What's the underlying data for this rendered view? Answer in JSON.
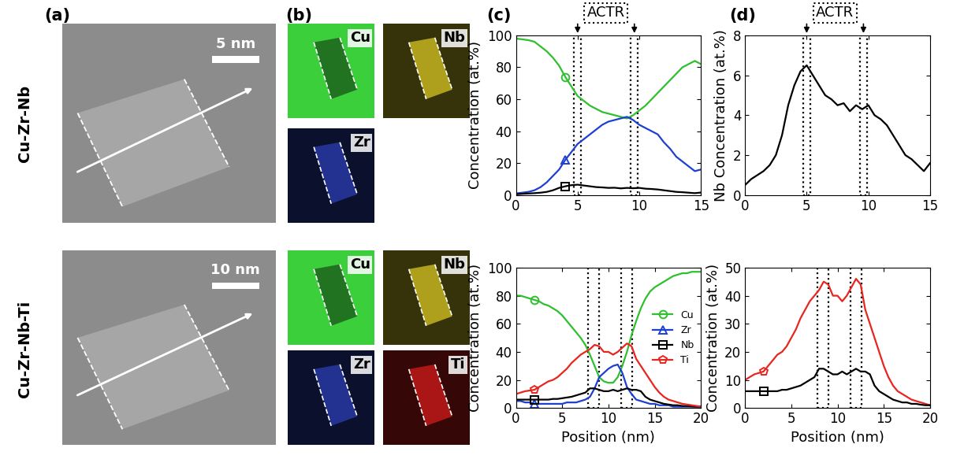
{
  "panel_labels": [
    "(a)",
    "(b)",
    "(c)",
    "(d)"
  ],
  "rows": [
    {
      "label": "Cu-Zr-Nb",
      "image": {
        "scale_bar": "5 nm"
      },
      "maps": [
        {
          "label": "Cu",
          "color": "#3ccf3c"
        },
        {
          "label": "Nb",
          "color": "#d9c823"
        },
        {
          "label": "Zr",
          "color": "#2c3fb5"
        }
      ]
    },
    {
      "label": "Cu-Zr-Nb-Ti",
      "image": {
        "scale_bar": "10 nm"
      },
      "maps": [
        {
          "label": "Cu",
          "color": "#3ccf3c"
        },
        {
          "label": "Nb",
          "color": "#d9c823"
        },
        {
          "label": "Zr",
          "color": "#2c3fb5"
        },
        {
          "label": "Ti",
          "color": "#d41c1c"
        }
      ]
    }
  ],
  "chart_data": [
    {
      "type": "line",
      "x": [
        0,
        0.5,
        1,
        1.5,
        2,
        2.5,
        3,
        3.5,
        4,
        4.5,
        5,
        5.5,
        6,
        6.5,
        7,
        7.5,
        8,
        8.5,
        9,
        9.5,
        10,
        10.5,
        11,
        11.5,
        12,
        12.5,
        13,
        13.5,
        14,
        14.5,
        15
      ],
      "xlim": [
        0,
        15
      ],
      "xticks": [
        0,
        5,
        10,
        15
      ],
      "ylim": [
        0,
        100
      ],
      "yticks": [
        0,
        20,
        40,
        60,
        80,
        100
      ],
      "ylabel": "Concentration (at.%)",
      "annotation": "ACTR",
      "regions": [
        [
          4.7,
          5.3
        ],
        [
          9.3,
          9.9
        ]
      ],
      "series": [
        {
          "color": "#2fbf2f",
          "marker": "circle",
          "values": [
            98,
            97.5,
            97,
            96,
            93,
            90,
            86,
            81,
            74,
            68,
            62,
            59,
            56,
            54,
            52,
            51,
            50,
            49,
            48,
            50,
            53,
            56,
            60,
            64,
            68,
            72,
            76,
            80,
            82,
            84,
            82
          ]
        },
        {
          "color": "#1f3fd0",
          "marker": "triangle",
          "values": [
            1,
            1.5,
            2,
            3,
            5,
            8,
            12,
            16,
            22,
            27,
            32,
            35,
            38,
            41,
            44,
            46,
            47,
            48,
            49,
            47,
            44,
            42,
            40,
            38,
            33,
            29,
            24,
            21,
            18,
            15,
            16
          ]
        },
        {
          "color": "#000000",
          "marker": "square",
          "values": [
            0.5,
            0.8,
            1,
            1.2,
            1.5,
            2,
            3,
            4.5,
            5.5,
            6.2,
            6.5,
            6,
            5.5,
            5,
            4.8,
            4.5,
            4.6,
            4.2,
            4.5,
            4.3,
            4.5,
            4,
            3.8,
            3.5,
            3,
            2.5,
            2,
            1.8,
            1.5,
            1.2,
            1.6
          ]
        }
      ]
    },
    {
      "type": "line",
      "x": [
        0,
        0.5,
        1,
        1.5,
        2,
        2.5,
        3,
        3.5,
        4,
        4.5,
        5,
        5.5,
        6,
        6.5,
        7,
        7.5,
        8,
        8.5,
        9,
        9.5,
        10,
        10.5,
        11,
        11.5,
        12,
        12.5,
        13,
        13.5,
        14,
        14.5,
        15
      ],
      "xlim": [
        0,
        15
      ],
      "xticks": [
        0,
        5,
        10,
        15
      ],
      "ylim": [
        0,
        8
      ],
      "yticks": [
        0,
        2,
        4,
        6,
        8
      ],
      "ylabel": "Nb Concentration (at.%)",
      "annotation": "ACTR",
      "regions": [
        [
          4.7,
          5.3
        ],
        [
          9.3,
          9.9
        ]
      ],
      "series": [
        {
          "color": "#000000",
          "values": [
            0.5,
            0.8,
            1,
            1.2,
            1.5,
            2,
            3,
            4.5,
            5.5,
            6.2,
            6.5,
            6,
            5.5,
            5,
            4.8,
            4.5,
            4.6,
            4.2,
            4.5,
            4.3,
            4.5,
            4,
            3.8,
            3.5,
            3,
            2.5,
            2,
            1.8,
            1.5,
            1.2,
            1.6
          ]
        }
      ]
    },
    {
      "type": "line",
      "x": [
        0,
        0.5,
        1,
        1.5,
        2,
        2.5,
        3,
        3.5,
        4,
        4.5,
        5,
        5.5,
        6,
        6.5,
        7,
        7.5,
        8,
        8.5,
        9,
        9.5,
        10,
        10.5,
        11,
        11.5,
        12,
        12.5,
        13,
        13.5,
        14,
        14.5,
        15,
        15.5,
        16,
        16.5,
        17,
        17.5,
        18,
        18.5,
        19,
        19.5,
        20
      ],
      "xlim": [
        0,
        20
      ],
      "xticks": [
        0,
        5,
        10,
        15,
        20
      ],
      "ylim": [
        0,
        100
      ],
      "yticks": [
        0,
        20,
        40,
        60,
        80,
        100
      ],
      "xlabel": "Position (nm)",
      "ylabel": "Concentration (at.%)",
      "regions": [
        [
          7.8,
          9.0
        ],
        [
          11.4,
          12.6
        ]
      ],
      "legend": "center right",
      "series": [
        {
          "name": "Cu",
          "color": "#2fbf2f",
          "marker": "circle",
          "values": [
            80,
            80,
            79,
            78,
            77,
            76,
            74,
            73,
            71,
            69,
            66,
            62,
            58,
            54,
            50,
            45,
            38,
            30,
            22,
            19,
            18,
            18,
            22,
            30,
            40,
            52,
            62,
            71,
            78,
            83,
            86,
            88,
            90,
            92,
            94,
            95,
            96,
            96,
            97,
            97,
            97
          ]
        },
        {
          "name": "Zr",
          "color": "#1f3fd0",
          "marker": "triangle",
          "values": [
            5,
            5,
            4,
            4,
            3,
            3,
            3,
            3,
            3,
            3,
            3,
            4,
            4,
            4,
            5,
            6,
            8,
            14,
            22,
            25,
            28,
            30,
            31,
            25,
            15,
            10,
            6,
            5,
            4,
            3,
            3,
            2,
            2,
            2,
            1,
            1,
            1,
            1,
            1,
            1,
            1
          ]
        },
        {
          "name": "Nb",
          "color": "#000000",
          "marker": "square",
          "values": [
            6,
            6,
            6,
            6,
            6,
            6,
            6,
            6,
            6.5,
            6.5,
            7,
            7.5,
            8,
            9,
            10,
            11,
            14,
            14,
            13,
            12,
            12,
            13,
            12,
            13,
            14,
            13,
            13,
            12,
            8,
            6,
            5,
            4,
            3,
            2.5,
            2,
            2,
            1.5,
            1.5,
            1.2,
            1,
            1
          ]
        },
        {
          "name": "Ti",
          "color": "#e8251f",
          "marker": "pentagon",
          "values": [
            10,
            11,
            12,
            12.5,
            13,
            15,
            17,
            19,
            20,
            22,
            25,
            28,
            32,
            35,
            38,
            40,
            42,
            45,
            44,
            40,
            40,
            38,
            40,
            43,
            46,
            44,
            35,
            30,
            25,
            20,
            15,
            11,
            8,
            6,
            5,
            4,
            3,
            2.5,
            2,
            1.5,
            1
          ]
        }
      ]
    },
    {
      "type": "line",
      "x": [
        0,
        0.5,
        1,
        1.5,
        2,
        2.5,
        3,
        3.5,
        4,
        4.5,
        5,
        5.5,
        6,
        6.5,
        7,
        7.5,
        8,
        8.5,
        9,
        9.5,
        10,
        10.5,
        11,
        11.5,
        12,
        12.5,
        13,
        13.5,
        14,
        14.5,
        15,
        15.5,
        16,
        16.5,
        17,
        17.5,
        18,
        18.5,
        19,
        19.5,
        20
      ],
      "xlim": [
        0,
        20
      ],
      "xticks": [
        0,
        5,
        10,
        15,
        20
      ],
      "ylim": [
        0,
        50
      ],
      "yticks": [
        0,
        10,
        20,
        30,
        40,
        50
      ],
      "xlabel": "Position (nm)",
      "ylabel": "Concentration (at.%)",
      "regions": [
        [
          7.8,
          9.0
        ],
        [
          11.4,
          12.6
        ]
      ],
      "series": [
        {
          "color": "#e8251f",
          "marker": "pentagon",
          "values": [
            10,
            11,
            12,
            12.5,
            13,
            15,
            17,
            19,
            20,
            22,
            25,
            28,
            32,
            35,
            38,
            40,
            42,
            45,
            44,
            40,
            40,
            38,
            40,
            43,
            46,
            44,
            35,
            30,
            25,
            20,
            15,
            11,
            8,
            6,
            5,
            4,
            3,
            2.5,
            2,
            1.5,
            1
          ]
        },
        {
          "color": "#000000",
          "marker": "square",
          "values": [
            6,
            6,
            6,
            6,
            6,
            6,
            6,
            6,
            6.5,
            6.5,
            7,
            7.5,
            8,
            9,
            10,
            11,
            14,
            14,
            13,
            12,
            12,
            13,
            12,
            13,
            14,
            13,
            13,
            12,
            8,
            6,
            5,
            4,
            3,
            2.5,
            2,
            2,
            1.5,
            1.5,
            1.2,
            1,
            1
          ]
        }
      ]
    }
  ]
}
